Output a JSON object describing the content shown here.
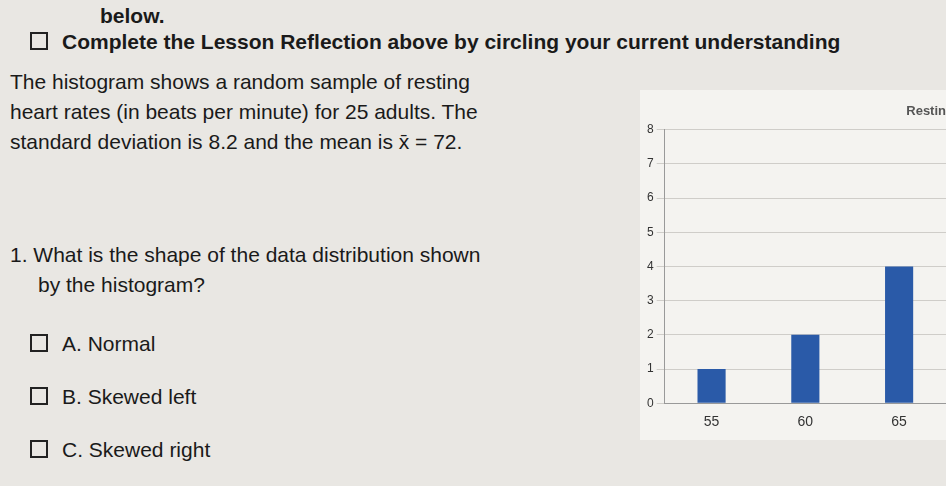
{
  "header": {
    "top_line": "below.",
    "task": "Complete the Lesson Reflection above by circling your current understanding"
  },
  "intro_lines": [
    "The histogram shows a random sample of resting",
    "heart rates (in beats per minute) for 25 adults.  The",
    "standard deviation is 8.2 and the mean is x̄ = 72."
  ],
  "question": {
    "lines": [
      "1.  What is the shape of the data distribution shown",
      "by the histogram?"
    ],
    "options": [
      "A.  Normal",
      "B.  Skewed left",
      "C.  Skewed right"
    ]
  },
  "chart_data": {
    "type": "bar",
    "title": "Restin",
    "categories": [
      "55",
      "60",
      "65"
    ],
    "values": [
      1,
      2,
      4
    ],
    "color": "#2a5aa8",
    "ylim": [
      0,
      8
    ],
    "yticks": [
      0,
      1,
      2,
      3,
      4,
      5,
      6,
      7,
      8
    ],
    "grid": true
  }
}
